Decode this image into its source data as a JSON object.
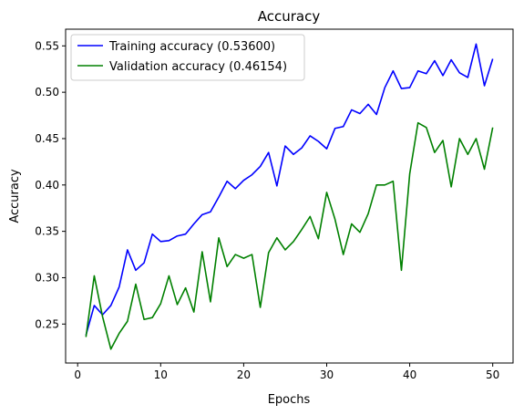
{
  "chart_data": {
    "type": "line",
    "title": "Accuracy",
    "xlabel": "Epochs",
    "ylabel": "Accuracy",
    "xlim": [
      -1.45,
      52.45
    ],
    "ylim": [
      0.208,
      0.568
    ],
    "xticks": [
      0,
      10,
      20,
      30,
      40,
      50
    ],
    "xtick_labels": [
      "0",
      "10",
      "20",
      "30",
      "40",
      "50"
    ],
    "yticks": [
      0.25,
      0.3,
      0.35,
      0.4,
      0.45,
      0.5,
      0.55
    ],
    "ytick_labels": [
      "0.25",
      "0.30",
      "0.35",
      "0.40",
      "0.45",
      "0.50",
      "0.55"
    ],
    "grid": false,
    "legend_position": "upper-left",
    "x": [
      1,
      2,
      3,
      4,
      5,
      6,
      7,
      8,
      9,
      10,
      11,
      12,
      13,
      14,
      15,
      16,
      17,
      18,
      19,
      20,
      21,
      22,
      23,
      24,
      25,
      26,
      27,
      28,
      29,
      30,
      31,
      32,
      33,
      34,
      35,
      36,
      37,
      38,
      39,
      40,
      41,
      42,
      43,
      44,
      45,
      46,
      47,
      48,
      49,
      50
    ],
    "series": [
      {
        "name": "Training accuracy (0.53600)",
        "color": "#0000ff",
        "values": [
          0.238,
          0.27,
          0.26,
          0.27,
          0.29,
          0.33,
          0.308,
          0.316,
          0.347,
          0.339,
          0.34,
          0.345,
          0.347,
          0.358,
          0.368,
          0.371,
          0.387,
          0.404,
          0.396,
          0.405,
          0.411,
          0.42,
          0.435,
          0.399,
          0.442,
          0.433,
          0.44,
          0.453,
          0.447,
          0.439,
          0.461,
          0.463,
          0.481,
          0.477,
          0.487,
          0.476,
          0.505,
          0.523,
          0.504,
          0.505,
          0.523,
          0.52,
          0.534,
          0.518,
          0.535,
          0.521,
          0.516,
          0.552,
          0.507,
          0.536
        ]
      },
      {
        "name": "Validation accuracy (0.46154)",
        "color": "#008000",
        "values": [
          0.236,
          0.302,
          0.258,
          0.223,
          0.24,
          0.253,
          0.293,
          0.255,
          0.257,
          0.272,
          0.302,
          0.271,
          0.289,
          0.263,
          0.328,
          0.274,
          0.343,
          0.312,
          0.325,
          0.321,
          0.325,
          0.268,
          0.327,
          0.343,
          0.33,
          0.339,
          0.352,
          0.366,
          0.342,
          0.392,
          0.363,
          0.325,
          0.358,
          0.349,
          0.369,
          0.4,
          0.4,
          0.404,
          0.308,
          0.412,
          0.467,
          0.462,
          0.435,
          0.448,
          0.398,
          0.45,
          0.433,
          0.45,
          0.417,
          0.462
        ]
      }
    ]
  }
}
